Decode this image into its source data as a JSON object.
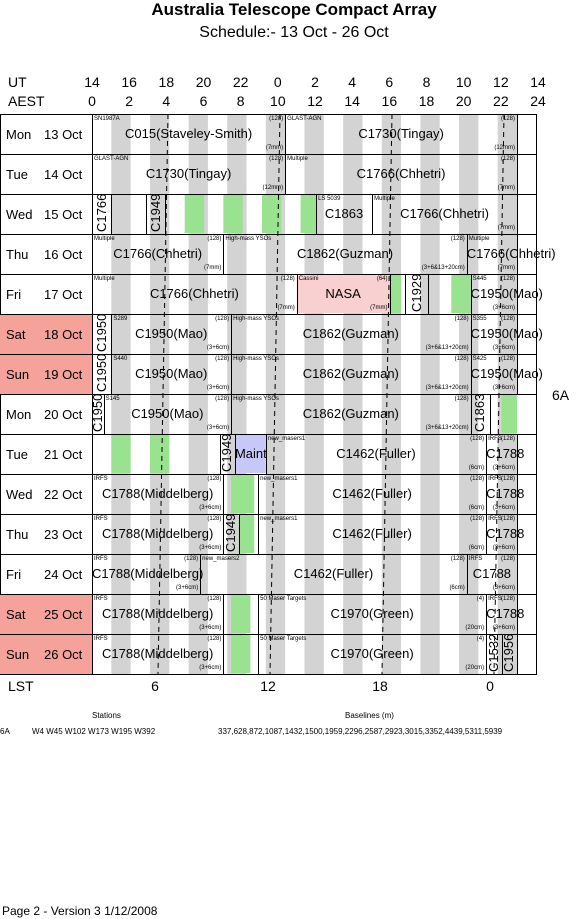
{
  "header": {
    "title": "Australia Telescope Compact Array",
    "subtitle": "Schedule:- 13 Oct - 26 Oct",
    "ut_label": "UT",
    "aest_label": "AEST",
    "ut_ticks": [
      "14",
      "16",
      "18",
      "20",
      "22",
      "0",
      "2",
      "4",
      "6",
      "8",
      "10",
      "12",
      "14"
    ],
    "aest_ticks": [
      "0",
      "2",
      "4",
      "6",
      "8",
      "10",
      "12",
      "14",
      "16",
      "18",
      "20",
      "22",
      "24"
    ]
  },
  "days": [
    {
      "dow": "Mon",
      "date": "13 Oct",
      "weekend": false
    },
    {
      "dow": "Tue",
      "date": "14 Oct",
      "weekend": false
    },
    {
      "dow": "Wed",
      "date": "15 Oct",
      "weekend": false
    },
    {
      "dow": "Thu",
      "date": "16 Oct",
      "weekend": false
    },
    {
      "dow": "Fri",
      "date": "17 Oct",
      "weekend": false
    },
    {
      "dow": "Sat",
      "date": "18 Oct",
      "weekend": true
    },
    {
      "dow": "Sun",
      "date": "19 Oct",
      "weekend": true
    },
    {
      "dow": "Mon",
      "date": "20 Oct",
      "weekend": false
    },
    {
      "dow": "Tue",
      "date": "21 Oct",
      "weekend": false
    },
    {
      "dow": "Wed",
      "date": "22 Oct",
      "weekend": false
    },
    {
      "dow": "Thu",
      "date": "23 Oct",
      "weekend": false
    },
    {
      "dow": "Fri",
      "date": "24 Oct",
      "weekend": false
    },
    {
      "dow": "Sat",
      "date": "25 Oct",
      "weekend": true
    },
    {
      "dow": "Sun",
      "date": "26 Oct",
      "weekend": true
    }
  ],
  "colors": {
    "weekend": "#f4a29a",
    "stripe": "#d3d3d3",
    "green": "#99e290",
    "maint": "#c8c8f8",
    "nasa": "#f8d0d0"
  },
  "config": "6A",
  "lst": {
    "label": "LST",
    "ticks": [
      "6",
      "12",
      "18",
      "0"
    ]
  },
  "stations_header": "Stations",
  "baselines_header": "Baselines (m)",
  "config_row": {
    "name": "6A",
    "stations": "W4 W45 W102 W173 W195 W392",
    "baselines": "337,628,872,1087,1432,1500,1959,2296,2587,2923,3015,3352,4439,5311,5939"
  },
  "footer": "Page 2 - Version 3  1/12/2008",
  "blocks": [
    {
      "row": 0,
      "s": 0,
      "e": 10,
      "tag": "SN1987A",
      "prio": "(128)",
      "title": "C015(Staveley-Smith)",
      "band": "(7mm)"
    },
    {
      "row": 0,
      "s": 10,
      "e": 22,
      "tag": "GLAST-AGN",
      "prio": "(128)",
      "title": "C1730(Tingay)",
      "band": "(12mm)"
    },
    {
      "row": 1,
      "s": 0,
      "e": 10,
      "tag": "GLAST-AGN",
      "prio": "(128)",
      "title": "C1730(Tingay)",
      "band": "(12mm)"
    },
    {
      "row": 1,
      "s": 10,
      "e": 22,
      "tag": "Multiple",
      "prio": "(128)",
      "title": "C1766(Chhetri)",
      "band": "(7mm)"
    },
    {
      "row": 2,
      "s": 0,
      "e": 1,
      "rot": "C1766"
    },
    {
      "row": 2,
      "s": 2.8,
      "e": 3.8,
      "rot": "C1949"
    },
    {
      "row": 2,
      "s": 11.6,
      "e": 14.5,
      "tag": "LS 5039",
      "title": "C1863"
    },
    {
      "row": 2,
      "s": 14.5,
      "e": 22,
      "tag": "Multiple",
      "title": "C1766(Chhetri)",
      "band": "(7mm)"
    },
    {
      "row": 3,
      "s": 0,
      "e": 6.8,
      "tag": "Multiple",
      "prio": "(128)",
      "title": "C1766(Chhetri)",
      "band": "(7mm)"
    },
    {
      "row": 3,
      "s": 6.8,
      "e": 19.4,
      "tag": "High-mass YSOs",
      "prio": "(128)",
      "title": "C1862(Guzman)",
      "band": "(3+6&13+20cm)"
    },
    {
      "row": 3,
      "s": 19.4,
      "e": 22,
      "tag": "Multiple",
      "title": "C1766(Chhetri)",
      "band": "(7mm)"
    },
    {
      "row": 4,
      "s": 0,
      "e": 10.6,
      "tag": "Multiple",
      "prio": "(128)",
      "title": "C1766(Chhetri)",
      "band": "(7mm)"
    },
    {
      "row": 4,
      "s": 10.6,
      "e": 15.4,
      "tag": "Cassini",
      "prio": "(64)",
      "title": "NASA",
      "band": "(7mm)"
    },
    {
      "row": 4,
      "s": 16.2,
      "e": 17.4,
      "rot": "C1929"
    },
    {
      "row": 4,
      "s": 19.6,
      "e": 22,
      "tag": "S445",
      "prio": "(128)",
      "title": "C1950(Mao)",
      "band": "(3+6cm)"
    },
    {
      "row": 5,
      "s": 0,
      "e": 1,
      "rot": "C1950"
    },
    {
      "row": 5,
      "s": 1,
      "e": 7.2,
      "tag": "S289",
      "prio": "(128)",
      "title": "C1950(Mao)",
      "band": "(3+6cm)"
    },
    {
      "row": 5,
      "s": 7.2,
      "e": 19.6,
      "tag": "High-mass YSOs",
      "prio": "(128)",
      "title": "C1862(Guzman)",
      "band": "(3+6&13+20cm)"
    },
    {
      "row": 5,
      "s": 19.6,
      "e": 22,
      "tag": "S355",
      "prio": "(128)",
      "title": "C1950(Mao)",
      "band": "(3+6cm)"
    },
    {
      "row": 6,
      "s": 0,
      "e": 1,
      "rot": "C1950"
    },
    {
      "row": 6,
      "s": 1,
      "e": 7.2,
      "tag": "S440",
      "prio": "(128)",
      "title": "C1950(Mao)",
      "band": "(3+6cm)"
    },
    {
      "row": 6,
      "s": 7.2,
      "e": 19.6,
      "tag": "High-mass YSOs",
      "prio": "(128)",
      "title": "C1862(Guzman)",
      "band": "(3+6&13+20cm)"
    },
    {
      "row": 6,
      "s": 19.6,
      "e": 22,
      "tag": "S425",
      "prio": "(128)",
      "title": "C1950(Mao)",
      "band": "(3+6cm)"
    },
    {
      "row": 7,
      "s": 0,
      "e": 0.6,
      "rot": "C1950"
    },
    {
      "row": 7,
      "s": 0.6,
      "e": 7.2,
      "tag": "S145",
      "prio": "(128)",
      "title": "C1950(Mao)",
      "band": "(3+6cm)"
    },
    {
      "row": 7,
      "s": 7.2,
      "e": 19.6,
      "tag": "High-mass YSOs",
      "prio": "(128)",
      "title": "C1862(Guzman)",
      "band": "(3+6&13+20cm)"
    },
    {
      "row": 7,
      "s": 19.6,
      "e": 20.6,
      "rot": "C1863"
    },
    {
      "row": 8,
      "s": 6.6,
      "e": 7.4,
      "rot": "C1949"
    },
    {
      "row": 8,
      "s": 7.4,
      "e": 9.0,
      "title": "Maint"
    },
    {
      "row": 8,
      "s": 9.0,
      "e": 20.4,
      "tag": "new_masers1",
      "prio": "(128)",
      "title": "C1462(Fuller)",
      "band": "(6cm)"
    },
    {
      "row": 8,
      "s": 20.4,
      "e": 22,
      "tag": "IRFS",
      "prio": "(128)",
      "title": "C1788",
      "band": "(3+6cm)"
    },
    {
      "row": 9,
      "s": 0,
      "e": 6.8,
      "tag": "IRFS",
      "prio": "(128)",
      "title": "C1788(Middelberg)",
      "band": "(3+6cm)"
    },
    {
      "row": 9,
      "s": 8.6,
      "e": 20.4,
      "tag": "new_masers1",
      "prio": "(128)",
      "title": "C1462(Fuller)",
      "band": "(6cm)"
    },
    {
      "row": 9,
      "s": 20.4,
      "e": 22,
      "tag": "IRFS",
      "prio": "(128)",
      "title": "C1788",
      "band": "(3+6cm)"
    },
    {
      "row": 10,
      "s": 0,
      "e": 6.8,
      "tag": "IRFS",
      "prio": "(128)",
      "title": "C1788(Middelberg)",
      "band": "(3+6cm)"
    },
    {
      "row": 10,
      "s": 6.8,
      "e": 7.6,
      "rot": "C1949"
    },
    {
      "row": 10,
      "s": 8.6,
      "e": 20.4,
      "tag": "new_masers1",
      "prio": "(128)",
      "title": "C1462(Fuller)",
      "band": "(6cm)"
    },
    {
      "row": 10,
      "s": 20.4,
      "e": 22,
      "tag": "IRFS",
      "prio": "(128)",
      "title": "C1788",
      "band": "(3+6cm)"
    },
    {
      "row": 11,
      "s": 0,
      "e": 5.6,
      "tag": "IRFS",
      "prio": "(128)",
      "title": "C1788(Middelberg)",
      "band": "(3+6cm)"
    },
    {
      "row": 11,
      "s": 5.6,
      "e": 19.4,
      "tag": "new_masers2",
      "prio": "(128)",
      "title": "C1462(Fuller)",
      "band": "(6cm)"
    },
    {
      "row": 11,
      "s": 19.4,
      "e": 22,
      "tag": "IRFS",
      "prio": "(128)",
      "title": "C1788",
      "band": "(3+6cm)"
    },
    {
      "row": 12,
      "s": 0,
      "e": 6.8,
      "tag": "IRFS",
      "prio": "(128)",
      "title": "C1788(Middelberg)",
      "band": "(3+6cm)"
    },
    {
      "row": 12,
      "s": 8.6,
      "e": 20.4,
      "tag": "50 Maser Targets",
      "prio": "(4)",
      "title": "C1970(Green)",
      "band": "(20cm)"
    },
    {
      "row": 12,
      "s": 20.4,
      "e": 22,
      "tag": "IRFS",
      "prio": "(128)",
      "title": "C1788",
      "band": "(3+6cm)"
    },
    {
      "row": 13,
      "s": 0,
      "e": 6.8,
      "tag": "IRFS",
      "prio": "(128)",
      "title": "C1788(Middelberg)",
      "band": "(3+6cm)"
    },
    {
      "row": 13,
      "s": 8.6,
      "e": 20.4,
      "tag": "50 Maser Targets",
      "prio": "(4)",
      "title": "C1970(Green)",
      "band": "(20cm)"
    },
    {
      "row": 13,
      "s": 20.4,
      "e": 21.2,
      "rot": "C1532"
    },
    {
      "row": 13,
      "s": 21.2,
      "e": 22,
      "rot": "C1956"
    }
  ],
  "fills": [
    {
      "row": 2,
      "s": 4.8,
      "e": 5.8,
      "c": "green"
    },
    {
      "row": 2,
      "s": 6.8,
      "e": 7.8,
      "c": "green"
    },
    {
      "row": 2,
      "s": 8.8,
      "e": 9.8,
      "c": "green"
    },
    {
      "row": 2,
      "s": 10.8,
      "e": 11.6,
      "c": "green"
    },
    {
      "row": 4,
      "s": 10.6,
      "e": 15.4,
      "c": "nasa"
    },
    {
      "row": 4,
      "s": 15.4,
      "e": 16.0,
      "c": "green"
    },
    {
      "row": 4,
      "s": 18.6,
      "e": 19.6,
      "c": "green"
    },
    {
      "row": 7,
      "s": 21.2,
      "e": 22,
      "c": "green"
    },
    {
      "row": 8,
      "s": 1,
      "e": 2,
      "c": "green"
    },
    {
      "row": 8,
      "s": 3,
      "e": 4,
      "c": "green"
    },
    {
      "row": 8,
      "s": 7.4,
      "e": 9.0,
      "c": "maint"
    },
    {
      "row": 9,
      "s": 7.2,
      "e": 8.4,
      "c": "green"
    },
    {
      "row": 10,
      "s": 7.6,
      "e": 8.4,
      "c": "green"
    },
    {
      "row": 12,
      "s": 7.2,
      "e": 8.2,
      "c": "green"
    },
    {
      "row": 13,
      "s": 7.2,
      "e": 8.2,
      "c": "green"
    }
  ]
}
